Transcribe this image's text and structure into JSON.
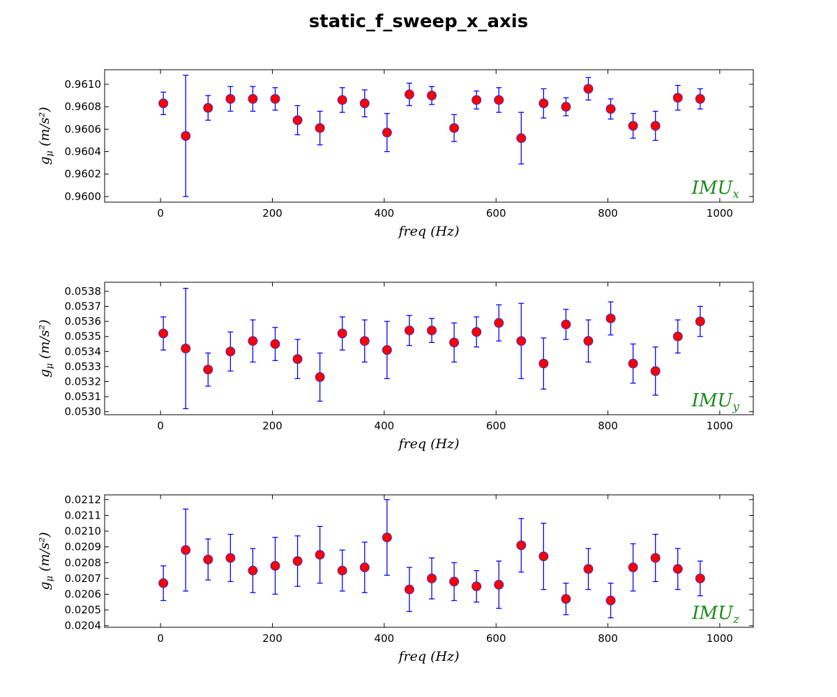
{
  "title": "static_f_sweep_x_axis",
  "chart_data": [
    {
      "type": "scatter",
      "title": "",
      "annotation": {
        "base": "IMU",
        "sub": "x"
      },
      "xlabel": "freq (Hz)",
      "ylabel": {
        "base": "g",
        "sub": "μ",
        "unit": "(m/s²)"
      },
      "xlim": [
        -100,
        1060
      ],
      "ylim": [
        0.95995,
        0.96113
      ],
      "xticks": [
        0,
        200,
        400,
        600,
        800,
        1000
      ],
      "yticks": [
        0.96,
        0.9602,
        0.9604,
        0.9606,
        0.9608,
        0.961
      ],
      "ytick_decimals": 4,
      "marker_color": "#ff0000",
      "marker_edge": "#3333cc",
      "errorbar_color": "#0000ff",
      "grid": false,
      "x": [
        5,
        45,
        85,
        125,
        165,
        205,
        245,
        285,
        325,
        365,
        405,
        445,
        485,
        525,
        565,
        605,
        645,
        685,
        725,
        765,
        805,
        845,
        885,
        925,
        965
      ],
      "y": [
        0.96083,
        0.96054,
        0.96079,
        0.96087,
        0.96087,
        0.96087,
        0.96068,
        0.96061,
        0.96086,
        0.96083,
        0.96057,
        0.96091,
        0.9609,
        0.96061,
        0.96086,
        0.96086,
        0.96052,
        0.96083,
        0.9608,
        0.96096,
        0.96078,
        0.96063,
        0.96063,
        0.96088,
        0.96087
      ],
      "yerr": [
        0.0001,
        0.00054,
        0.00011,
        0.00011,
        0.00011,
        0.0001,
        0.00013,
        0.00015,
        0.00011,
        0.00012,
        0.00017,
        0.0001,
        8e-05,
        0.00012,
        8e-05,
        0.00011,
        0.00023,
        0.00013,
        8e-05,
        0.0001,
        9e-05,
        0.00011,
        0.00013,
        0.00011,
        9e-05
      ]
    },
    {
      "type": "scatter",
      "title": "",
      "annotation": {
        "base": "IMU",
        "sub": "y"
      },
      "xlabel": "freq (Hz)",
      "ylabel": {
        "base": "g",
        "sub": "μ",
        "unit": "(m/s²)"
      },
      "xlim": [
        -100,
        1060
      ],
      "ylim": [
        0.05298,
        0.05386
      ],
      "xticks": [
        0,
        200,
        400,
        600,
        800,
        1000
      ],
      "yticks": [
        0.053,
        0.0531,
        0.0532,
        0.0533,
        0.0534,
        0.0535,
        0.0536,
        0.0537,
        0.0538
      ],
      "ytick_decimals": 4,
      "marker_color": "#ff0000",
      "marker_edge": "#3333cc",
      "errorbar_color": "#0000ff",
      "grid": false,
      "x": [
        5,
        45,
        85,
        125,
        165,
        205,
        245,
        285,
        325,
        365,
        405,
        445,
        485,
        525,
        565,
        605,
        645,
        685,
        725,
        765,
        805,
        845,
        885,
        925,
        965
      ],
      "y": [
        0.05352,
        0.05342,
        0.05328,
        0.0534,
        0.05347,
        0.05345,
        0.05335,
        0.05323,
        0.05352,
        0.05347,
        0.05341,
        0.05354,
        0.05354,
        0.05346,
        0.05353,
        0.05359,
        0.05347,
        0.05332,
        0.05358,
        0.05347,
        0.05362,
        0.05332,
        0.05327,
        0.0535,
        0.0536
      ],
      "yerr": [
        0.00011,
        0.0004,
        0.00011,
        0.00013,
        0.00014,
        0.00011,
        0.00013,
        0.00016,
        0.00011,
        0.00014,
        0.00019,
        0.0001,
        8e-05,
        0.00013,
        0.0001,
        0.00012,
        0.00025,
        0.00017,
        0.0001,
        0.00014,
        0.00011,
        0.00013,
        0.00016,
        0.00011,
        0.0001
      ]
    },
    {
      "type": "scatter",
      "title": "",
      "annotation": {
        "base": "IMU",
        "sub": "z"
      },
      "xlabel": "freq (Hz)",
      "ylabel": {
        "base": "g",
        "sub": "μ",
        "unit": "(m/s²)"
      },
      "xlim": [
        -100,
        1060
      ],
      "ylim": [
        0.02039,
        0.02123
      ],
      "xticks": [
        0,
        200,
        400,
        600,
        800,
        1000
      ],
      "yticks": [
        0.0204,
        0.0205,
        0.0206,
        0.0207,
        0.0208,
        0.0209,
        0.021,
        0.0211,
        0.0212
      ],
      "ytick_decimals": 4,
      "marker_color": "#ff0000",
      "marker_edge": "#3333cc",
      "errorbar_color": "#0000ff",
      "grid": false,
      "x": [
        5,
        45,
        85,
        125,
        165,
        205,
        245,
        285,
        325,
        365,
        405,
        445,
        485,
        525,
        565,
        605,
        645,
        685,
        725,
        765,
        805,
        845,
        885,
        925,
        965
      ],
      "y": [
        0.02067,
        0.02088,
        0.02082,
        0.02083,
        0.02075,
        0.02078,
        0.02081,
        0.02085,
        0.02075,
        0.02077,
        0.02096,
        0.02063,
        0.0207,
        0.02068,
        0.02065,
        0.02066,
        0.02091,
        0.02084,
        0.02057,
        0.02076,
        0.02056,
        0.02077,
        0.02083,
        0.02076,
        0.0207
      ],
      "yerr": [
        0.00011,
        0.00026,
        0.00013,
        0.00015,
        0.00014,
        0.00018,
        0.00016,
        0.00018,
        0.00013,
        0.00016,
        0.00024,
        0.00014,
        0.00013,
        0.00012,
        0.0001,
        0.00015,
        0.00017,
        0.00021,
        0.0001,
        0.00013,
        0.00011,
        0.00015,
        0.00015,
        0.00013,
        0.00011
      ]
    }
  ]
}
